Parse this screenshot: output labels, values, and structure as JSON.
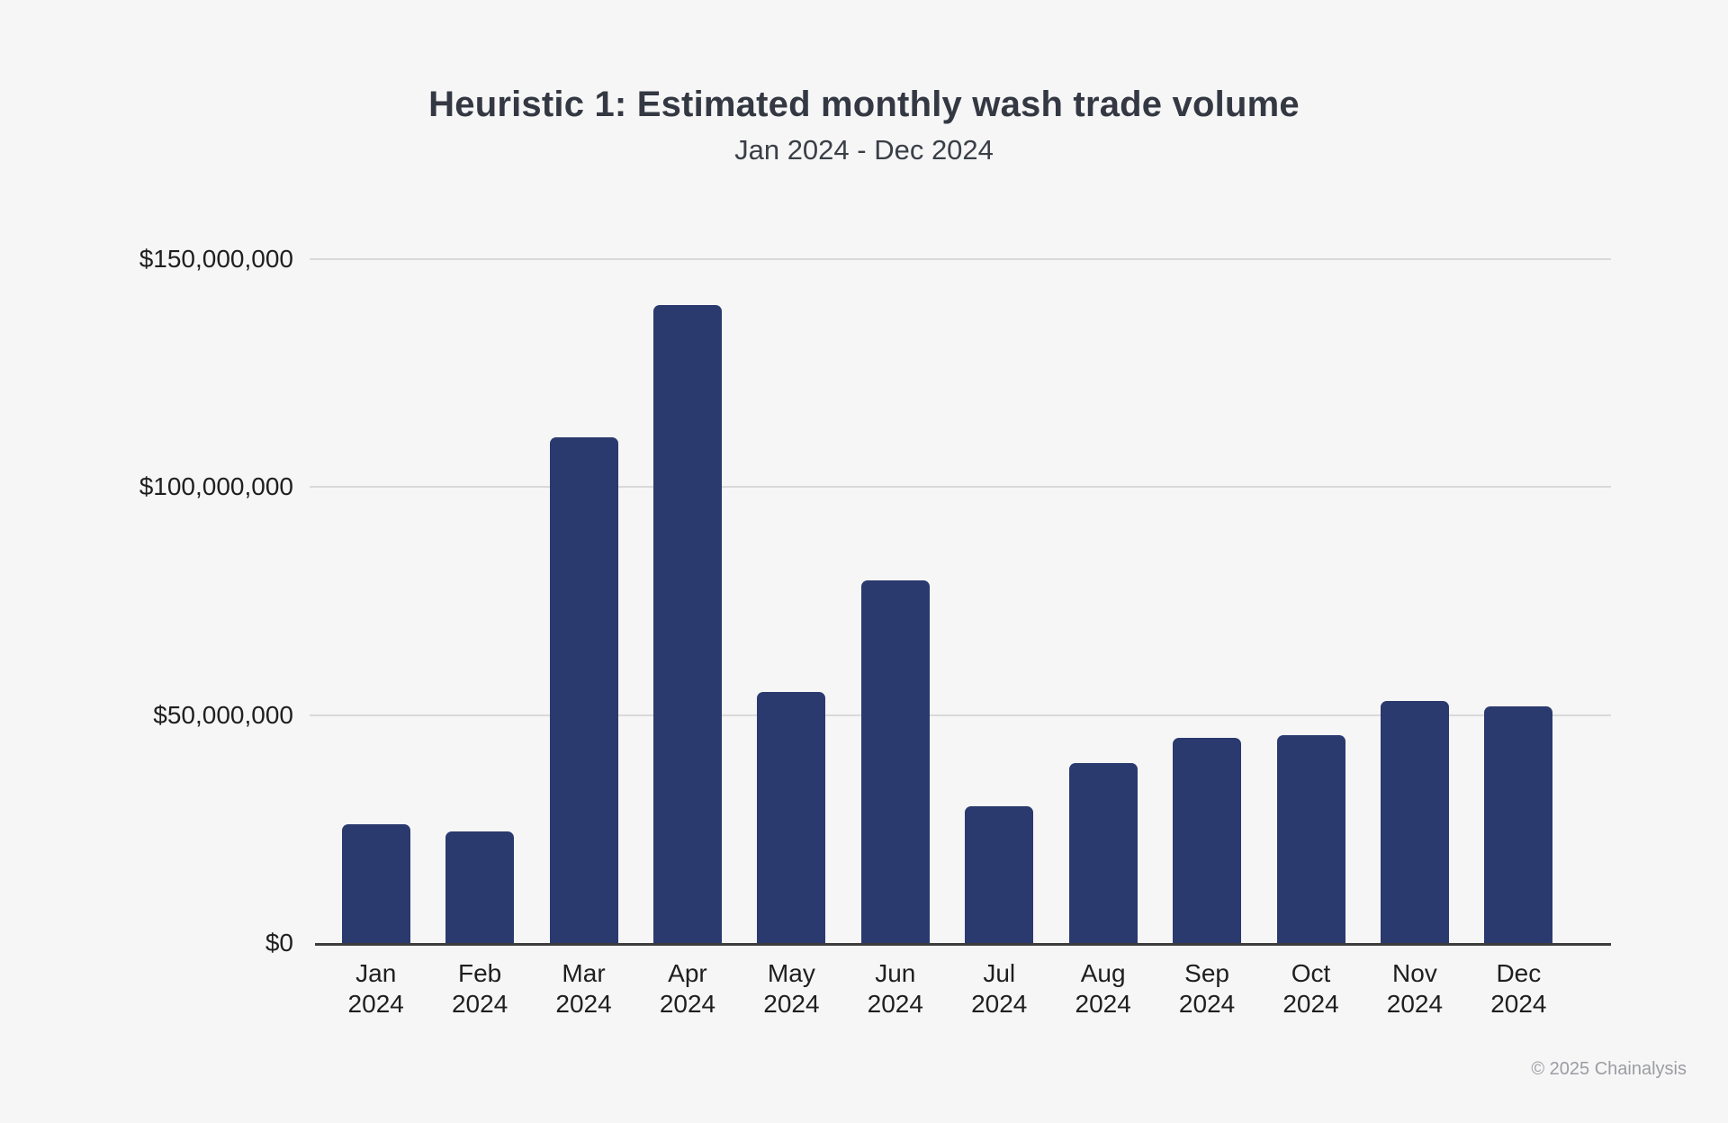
{
  "page": {
    "background_color": "#f6f6f7"
  },
  "chart_data": {
    "type": "bar",
    "title": "Heuristic 1: Estimated monthly wash trade volume",
    "subtitle": "Jan 2024 - Dec 2024",
    "categories": [
      "Jan 2024",
      "Feb 2024",
      "Mar 2024",
      "Apr 2024",
      "May 2024",
      "Jun 2024",
      "Jul 2024",
      "Aug 2024",
      "Sep 2024",
      "Oct 2024",
      "Nov 2024",
      "Dec 2024"
    ],
    "values": [
      26000000,
      24500000,
      111000000,
      140000000,
      55000000,
      79500000,
      30000000,
      39500000,
      45000000,
      45500000,
      53000000,
      52000000
    ],
    "xlabel": "",
    "ylabel": "",
    "ylim": [
      0,
      150000000
    ],
    "y_tick_values": [
      0,
      50000000,
      100000000,
      150000000
    ],
    "y_tick_labels": [
      "$0",
      "$50,000,000",
      "$100,000,000",
      "$150,000,000"
    ],
    "grid": "horizontal",
    "legend": "none",
    "bar_color": "#2b3a6e",
    "axis_line_color": "#3c3c3c",
    "gridline_color": "#d9d9da",
    "footer": "© 2025 Chainalysis"
  }
}
